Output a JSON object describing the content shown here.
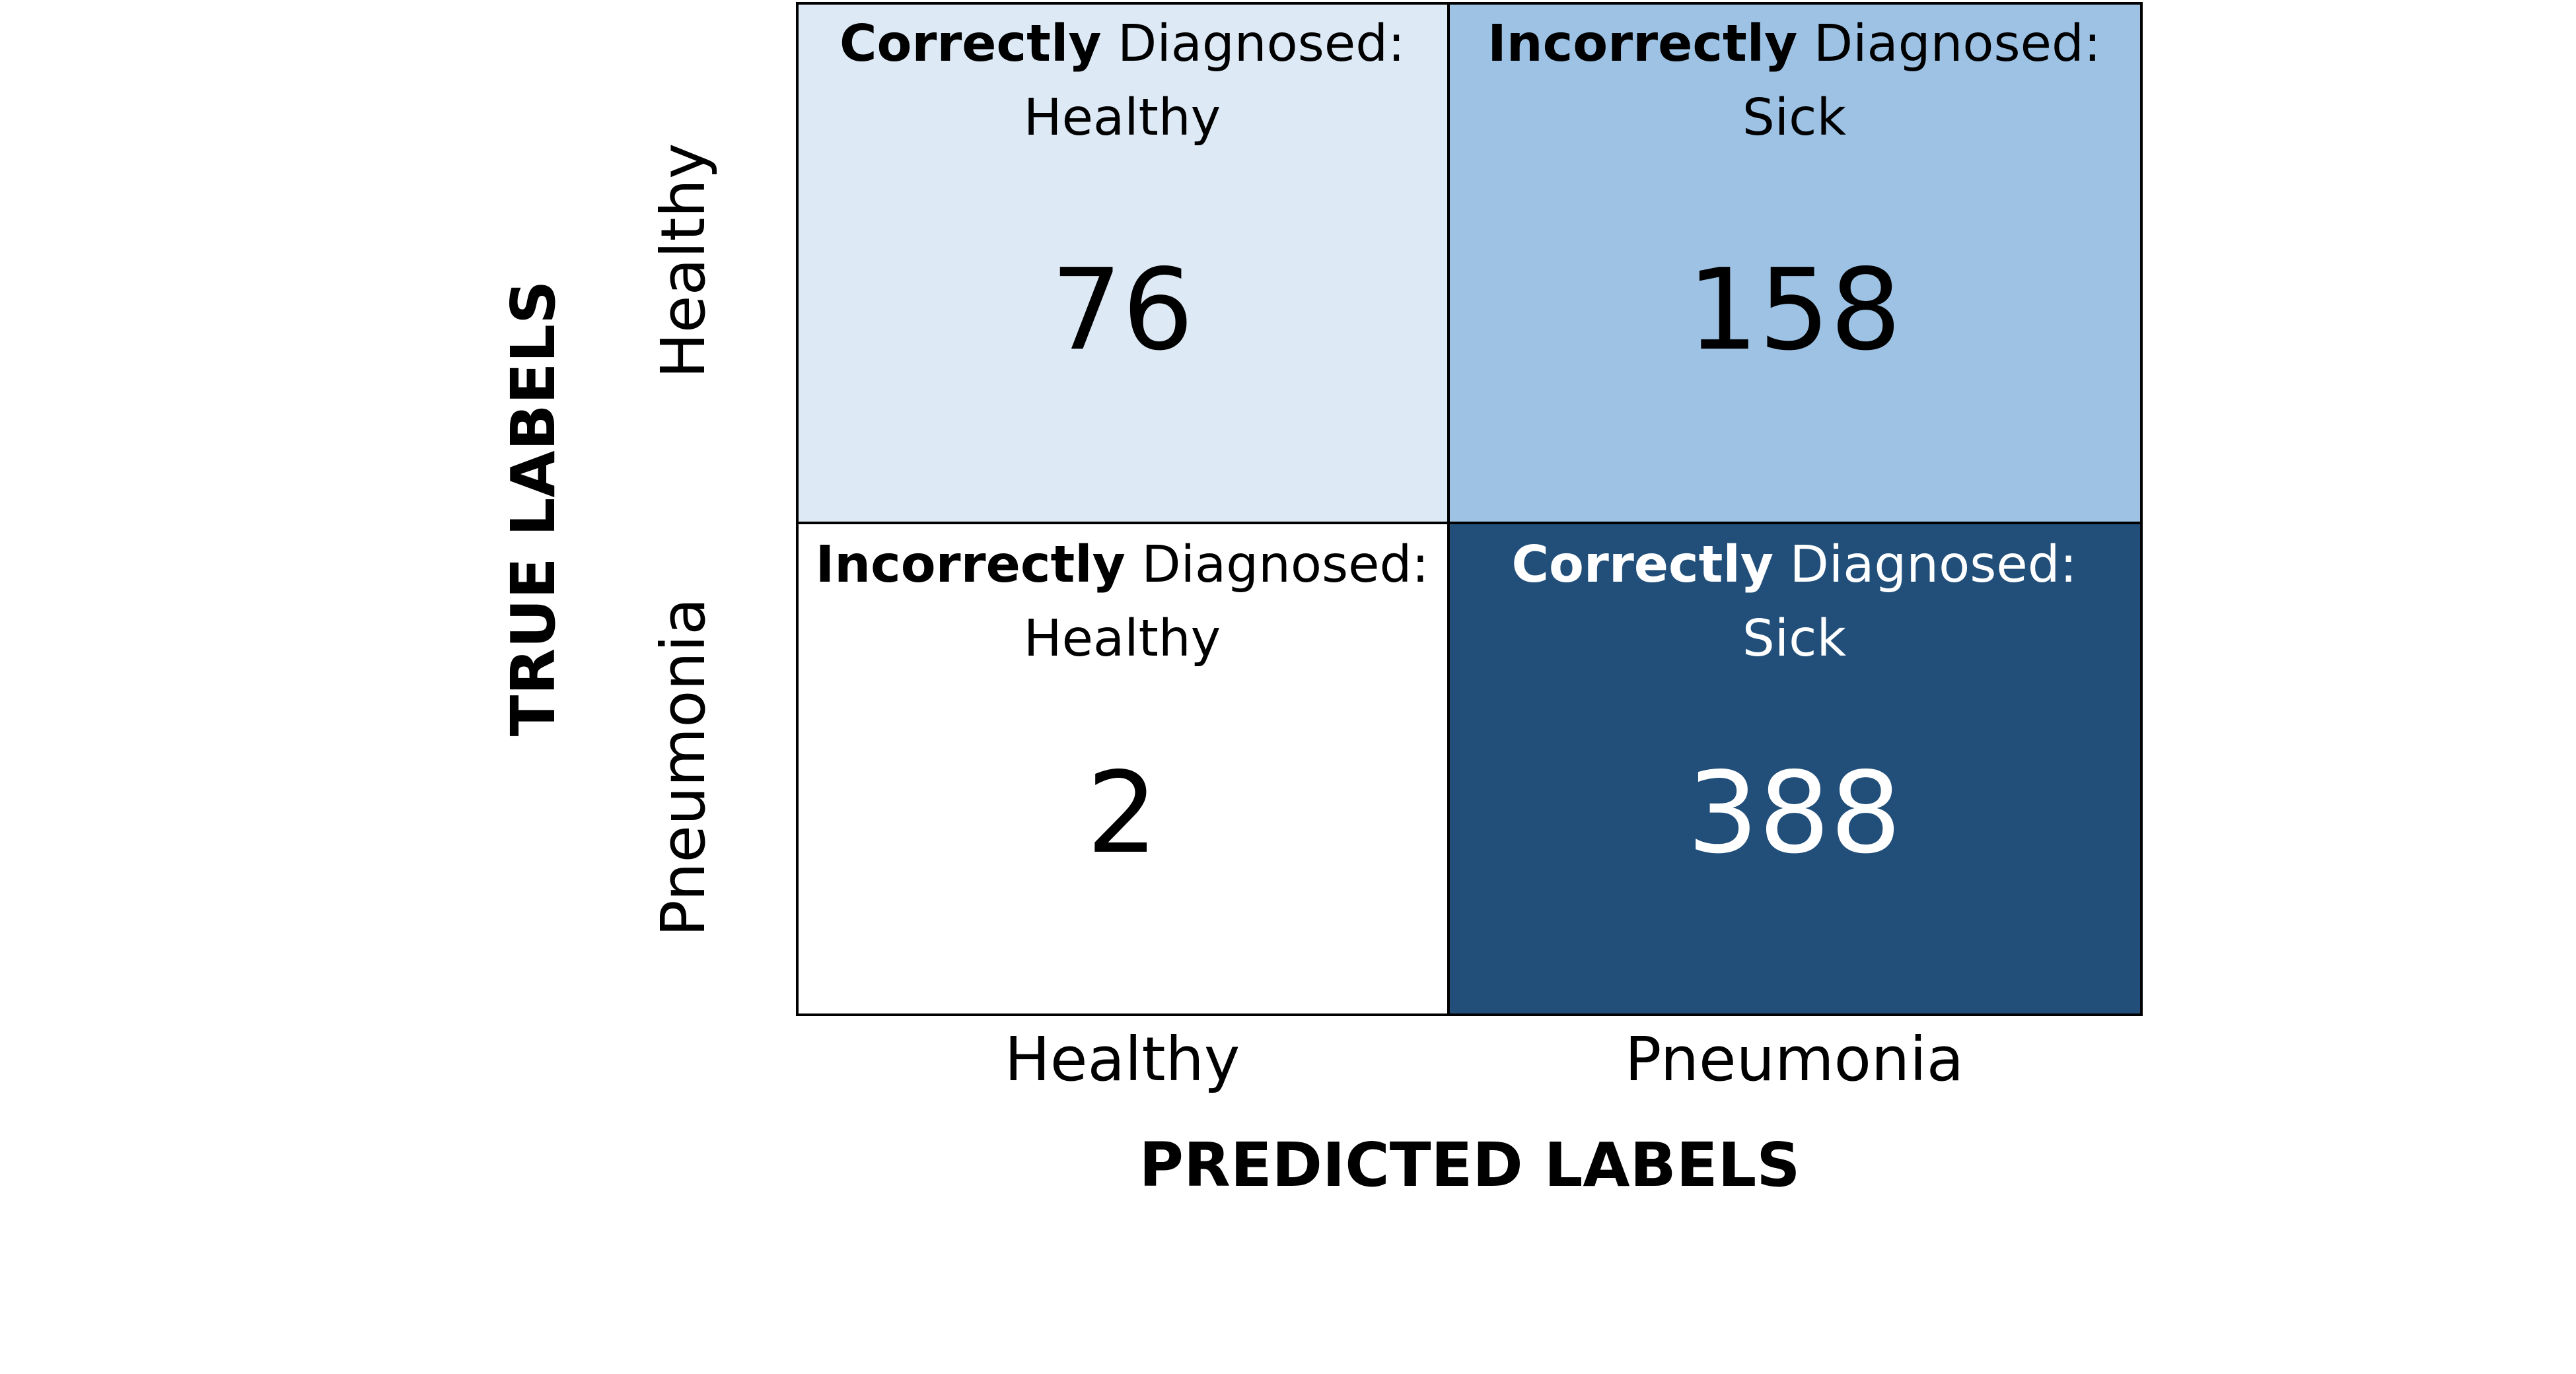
{
  "chart_data": {
    "type": "heatmap",
    "xlabel": "PREDICTED LABELS",
    "ylabel": "TRUE LABELS",
    "x_categories": [
      "Healthy",
      "Pneumonia"
    ],
    "y_categories": [
      "Healthy",
      "Pneumonia"
    ],
    "cells": [
      {
        "row": 0,
        "col": 0,
        "value": 76,
        "label_strong": "Correctly",
        "label_rest": " Diagnosed:",
        "label_sub": "Healthy",
        "color": "#dde9f5",
        "text_color": "#000000"
      },
      {
        "row": 0,
        "col": 1,
        "value": 158,
        "label_strong": "Incorrectly",
        "label_rest": " Diagnosed:",
        "label_sub": "Sick",
        "color": "#9dc2e4",
        "text_color": "#000000"
      },
      {
        "row": 1,
        "col": 0,
        "value": 2,
        "label_strong": "Incorrectly",
        "label_rest": " Diagnosed:",
        "label_sub": "Healthy",
        "color": "#ffffff",
        "text_color": "#000000"
      },
      {
        "row": 1,
        "col": 1,
        "value": 388,
        "label_strong": "Correctly",
        "label_rest": " Diagnosed:",
        "label_sub": "Sick",
        "color": "#214f7a",
        "text_color": "#ffffff"
      }
    ]
  }
}
